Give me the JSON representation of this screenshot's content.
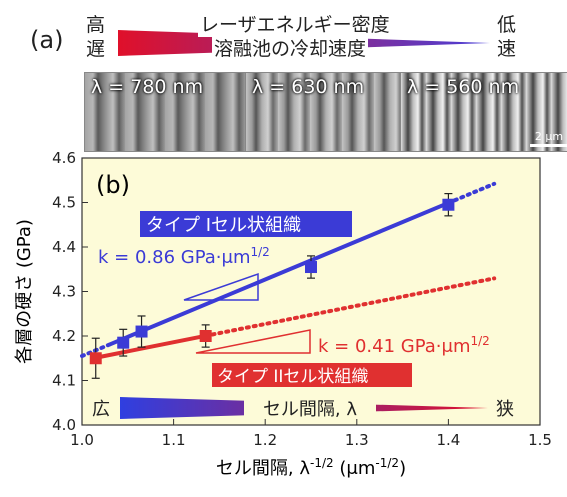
{
  "panel_a": {
    "label": "(a)",
    "left_top": "高",
    "left_bottom": "遅",
    "right_top": "低",
    "right_bottom": "速",
    "caption_top": "レーザエネルギー密度",
    "caption_bottom": "溶融池の冷却速度",
    "gradient_colors": [
      "#e0102a",
      "#4a3fd8"
    ],
    "images": [
      {
        "label": "λ = 780  nm"
      },
      {
        "label": "λ = 630 nm"
      },
      {
        "label": "λ = 560 nm"
      }
    ],
    "scale_bar": "2 μm"
  },
  "panel_b_label": "(b)",
  "bottom_arrow": {
    "left": "広",
    "center": "セル間隔, λ",
    "right": "狭"
  },
  "chart_data": {
    "type": "scatter",
    "xlabel": "セル間隔, λ-1/2 (μm-1/2)",
    "ylabel": "各層の硬さ (GPa)",
    "xlim": [
      1.0,
      1.5
    ],
    "ylim": [
      4.0,
      4.6
    ],
    "xticks": [
      "1.0",
      "1.1",
      "1.2",
      "1.3",
      "1.4",
      "1.5"
    ],
    "yticks": [
      "4.0",
      "4.1",
      "4.2",
      "4.3",
      "4.4",
      "4.5",
      "4.6"
    ],
    "background": "#fdfbd8",
    "series": [
      {
        "name": "タイプ Iセル状組織",
        "color": "#3b3bd6",
        "marker": "square",
        "points": [
          {
            "x": 1.045,
            "y": 4.185,
            "err": 0.03
          },
          {
            "x": 1.065,
            "y": 4.21,
            "err": 0.035
          },
          {
            "x": 1.25,
            "y": 4.355,
            "err": 0.025
          },
          {
            "x": 1.4,
            "y": 4.495,
            "err": 0.025
          }
        ],
        "fit": {
          "slope": 0.86,
          "intercept": 3.295,
          "solid": [
            1.03,
            1.4
          ],
          "dotted": [
            [
              1.0,
              1.03
            ],
            [
              1.4,
              1.45
            ]
          ]
        },
        "slope_label": "k = 0.86 GPa·μm1/2"
      },
      {
        "name": "タイプ IIセル状組織",
        "color": "#e03030",
        "marker": "square",
        "points": [
          {
            "x": 1.015,
            "y": 4.15,
            "err": 0.045
          },
          {
            "x": 1.135,
            "y": 4.2,
            "err": 0.025
          }
        ],
        "fit": {
          "slope": 0.41,
          "intercept": 3.735,
          "solid": [
            1.015,
            1.135
          ],
          "dotted": [
            [
              1.135,
              1.45
            ]
          ]
        },
        "slope_label": "k = 0.41 GPa·μm1/2"
      }
    ]
  }
}
